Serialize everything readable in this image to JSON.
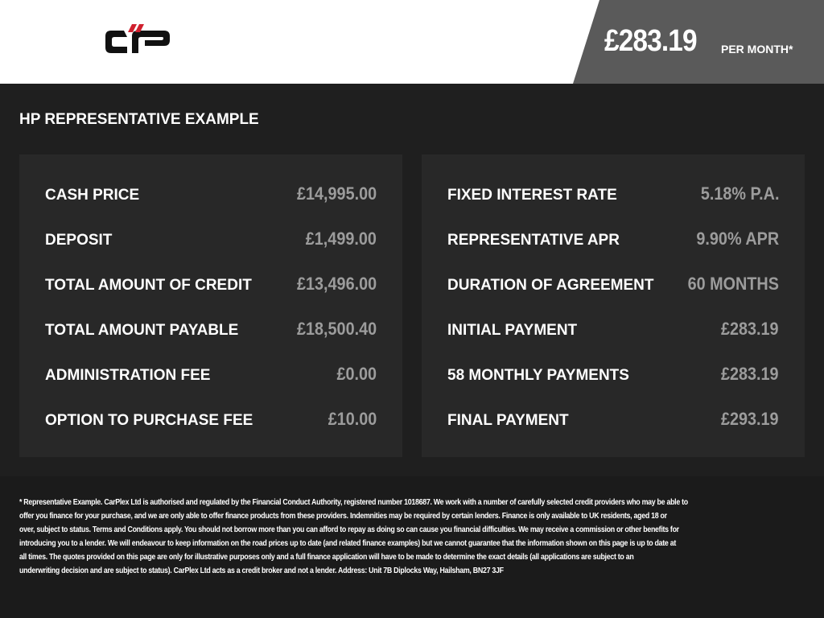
{
  "header": {
    "logo_text": "CP",
    "price": "£283.19",
    "per_month": "PER MONTH*"
  },
  "title": "HP REPRESENTATIVE EXAMPLE",
  "left": [
    {
      "label": "CASH PRICE",
      "value": "£14,995.00"
    },
    {
      "label": "DEPOSIT",
      "value": "£1,499.00"
    },
    {
      "label": "TOTAL AMOUNT OF CREDIT",
      "value": "£13,496.00"
    },
    {
      "label": "TOTAL AMOUNT PAYABLE",
      "value": "£18,500.40"
    },
    {
      "label": "ADMINISTRATION FEE",
      "value": "£0.00"
    },
    {
      "label": "OPTION TO PURCHASE FEE",
      "value": "£10.00"
    }
  ],
  "right": [
    {
      "label": "FIXED INTEREST RATE",
      "value": "5.18% P.A."
    },
    {
      "label": "REPRESENTATIVE APR",
      "value": "9.90% APR"
    },
    {
      "label": "DURATION OF AGREEMENT",
      "value": "60 MONTHS"
    },
    {
      "label": "INITIAL PAYMENT",
      "value": "£283.19"
    },
    {
      "label": "58 MONTHLY PAYMENTS",
      "value": "£283.19"
    },
    {
      "label": "FINAL PAYMENT",
      "value": "£293.19"
    }
  ],
  "disclaimer": [
    "* Representative Example. CarPlex Ltd is authorised and regulated by the Financial Conduct Authority, registered number 1018687. We work with a number of carefully selected credit providers who may be able to",
    "offer you finance for your purchase, and we are only able to offer finance products from these providers. Indemnities may be required by certain lenders. Finance is only available to UK residents, aged 18 or",
    "over, subject to status. Terms and Conditions apply. You should not borrow more than you can afford to repay as doing so can cause you financial difficulties. We may receive a commission or other benefits for",
    "introducing you to a lender. We will endeavour to keep information on the road prices up to date (and related finance examples) but we cannot guarantee that the information shown on this page is up to date at",
    "all times. The quotes provided on this page are only for illustrative purposes only and a full finance application will have to be made to determine the exact details (all applications are subject to an",
    "underwriting decision and are subject to status). CarPlex Ltd acts as a credit broker and not a lender. Address: Unit 7B Diplocks Way, Hailsham, BN27 3JF"
  ],
  "colors": {
    "accent": "#d0202e",
    "value": "#9c9c9c",
    "panel": "#282828"
  }
}
